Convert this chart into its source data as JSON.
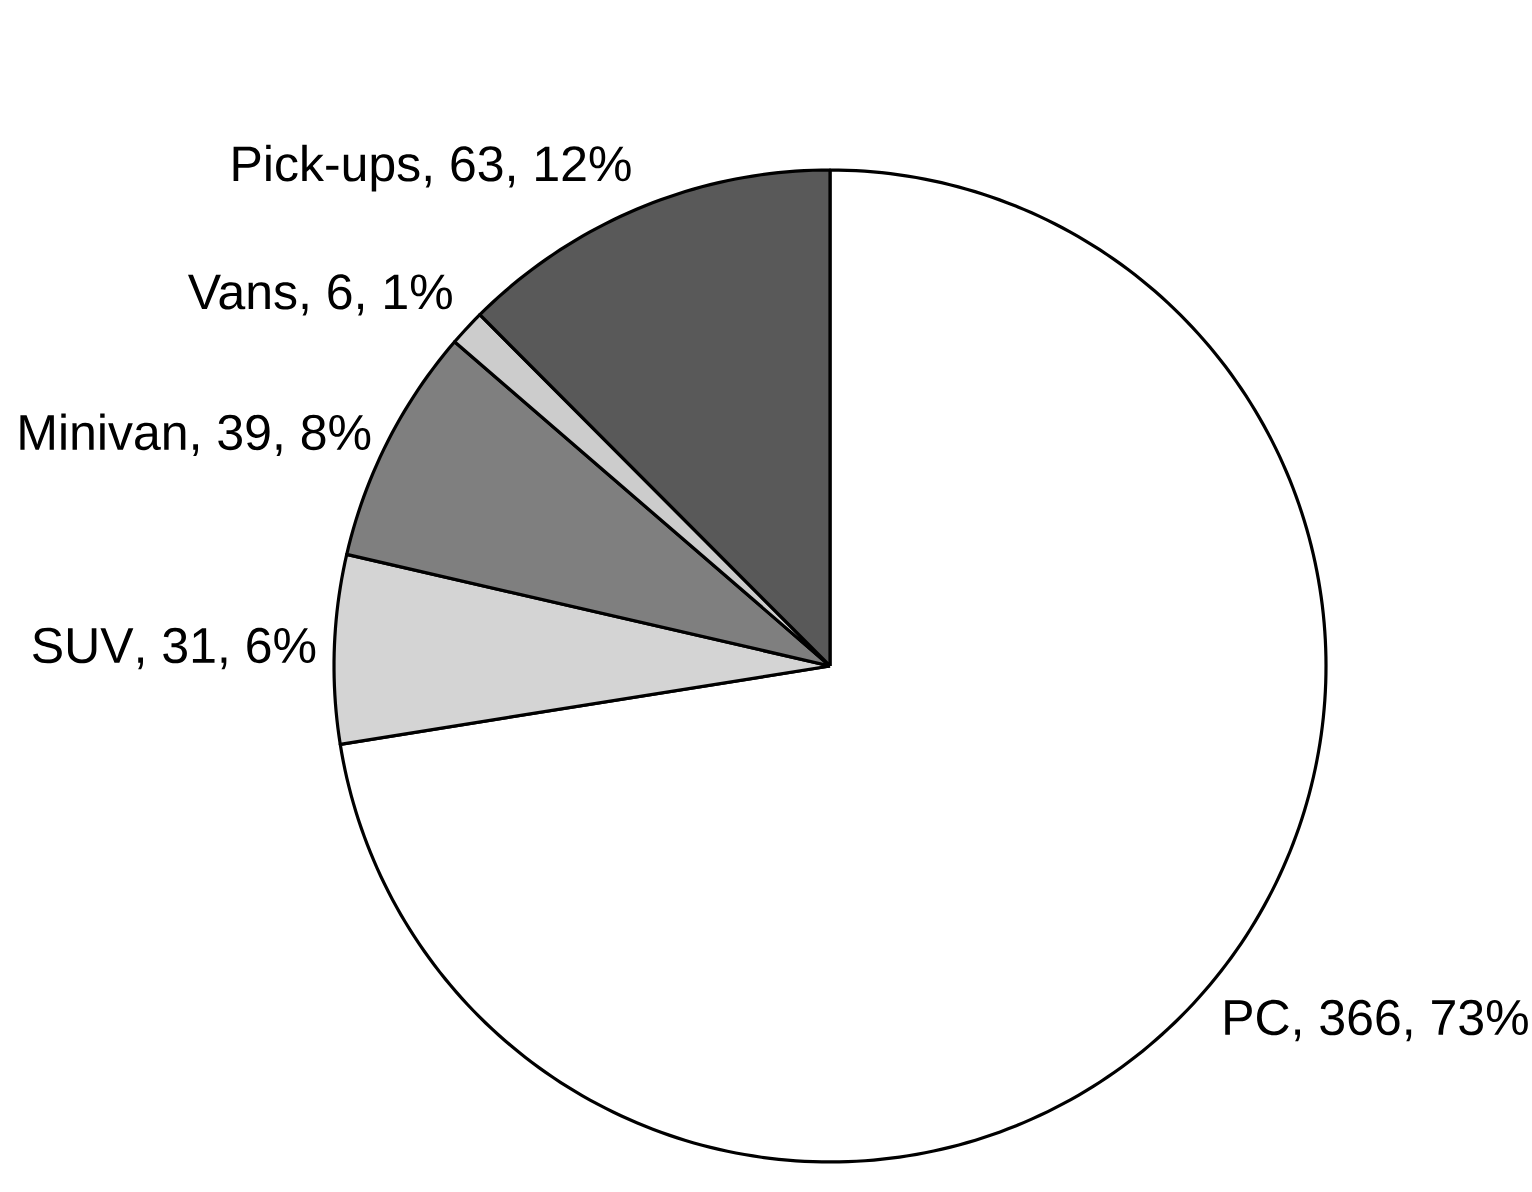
{
  "chart_data": {
    "type": "pie",
    "categories": [
      "PC",
      "SUV",
      "Minivan",
      "Vans",
      "Pick-ups"
    ],
    "values": [
      366,
      31,
      39,
      6,
      63
    ],
    "value_labels": [
      ", 366, 73%",
      ", 31, 6%",
      ", 39, 8%",
      ", 6, 1%",
      ", 63, 12%"
    ],
    "colors": [
      "#ffffff",
      "#d4d4d4",
      "#7f7f7f",
      "#cccccc",
      "#595959"
    ]
  }
}
